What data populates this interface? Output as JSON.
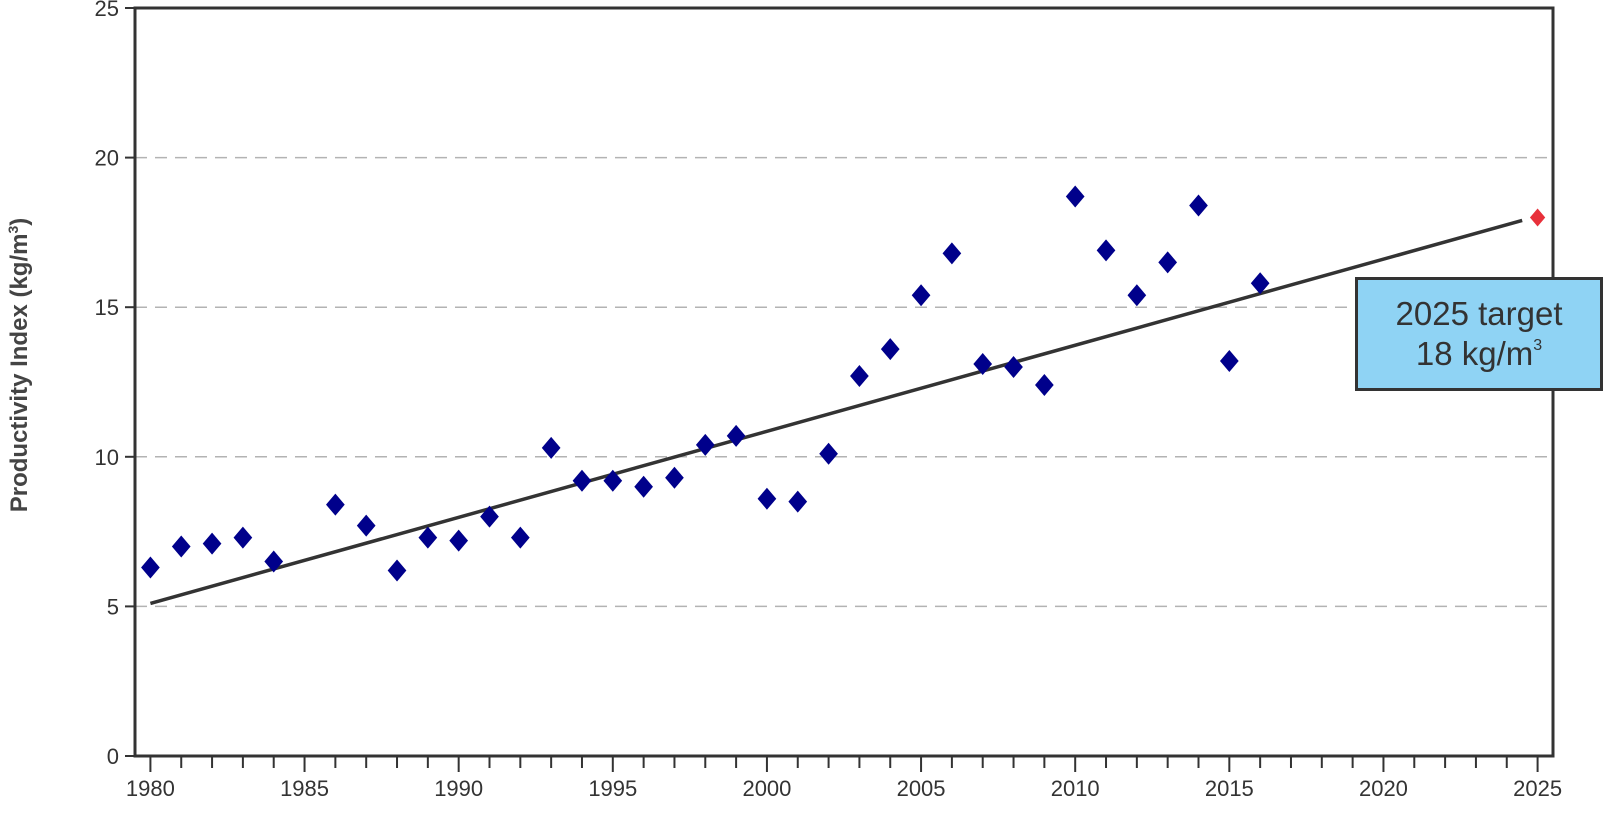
{
  "chart_data": {
    "type": "scatter",
    "ylabel": "Productivity Index (kg/m³)",
    "ylabel_main": "Productivity Index (kg/m",
    "ylabel_sup": "3",
    "ylabel_close": ")",
    "xlim": [
      1979.5,
      2025.5
    ],
    "ylim": [
      0,
      25
    ],
    "x_ticks": [
      "1980",
      "1985",
      "1990",
      "1995",
      "2000",
      "2005",
      "2010",
      "2015",
      "2020",
      "2025"
    ],
    "y_ticks": [
      "0",
      "5",
      "10",
      "15",
      "20",
      "25"
    ],
    "grid": "horizontal dashed",
    "series": [
      {
        "color": "#00008b",
        "marker": "diamond",
        "x": [
          1980,
          1981,
          1982,
          1983,
          1984,
          1986,
          1987,
          1988,
          1989,
          1990,
          1991,
          1992,
          1993,
          1994,
          1995,
          1996,
          1997,
          1998,
          1999,
          2000,
          2001,
          2002,
          2003,
          2004,
          2005,
          2006,
          2007,
          2008,
          2009,
          2010,
          2011,
          2012,
          2013,
          2014,
          2015,
          2016
        ],
        "y": [
          6.3,
          7.0,
          7.1,
          7.3,
          6.5,
          8.4,
          7.7,
          6.2,
          7.3,
          7.2,
          8.0,
          7.3,
          10.3,
          9.2,
          9.2,
          9.0,
          9.3,
          10.4,
          10.7,
          8.6,
          8.5,
          10.1,
          12.7,
          13.6,
          15.4,
          16.8,
          13.1,
          13.0,
          12.4,
          18.7,
          16.9,
          15.4,
          16.5,
          18.4,
          13.2,
          15.8
        ]
      },
      {
        "color": "#e8303a",
        "marker": "diamond",
        "x": [
          2025
        ],
        "y": [
          18.0
        ]
      }
    ],
    "trendline": {
      "color": "#333333",
      "x": [
        1980,
        2024.5
      ],
      "y": [
        5.1,
        17.9
      ]
    },
    "annotation": {
      "line1": "2025 target",
      "line2_main": "18 kg/m",
      "line2_sup": "3"
    }
  }
}
